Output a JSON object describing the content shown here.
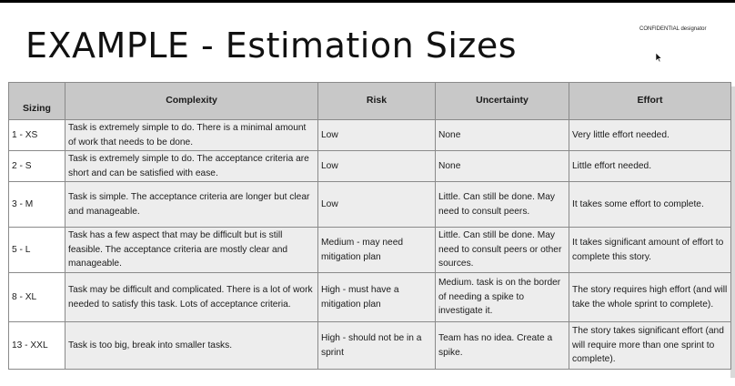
{
  "slide": {
    "title": "EXAMPLE - Estimation Sizes",
    "confidential_label": "CONFIDENTIAL designator"
  },
  "table": {
    "headers": [
      "Sizing",
      "Complexity",
      "Risk",
      "Uncertainty",
      "Effort"
    ],
    "rows": [
      {
        "sizing": "1 - XS",
        "complexity": "Task is extremely simple to do. There is a minimal amount of work that needs to be done.",
        "risk": "Low",
        "uncertainty": "None",
        "effort": "Very little effort needed."
      },
      {
        "sizing": "2 - S",
        "complexity": "Task is extremely simple to do. The acceptance criteria are short and can be satisfied with ease.",
        "risk": "Low",
        "uncertainty": "None",
        "effort": "Little effort needed."
      },
      {
        "sizing": "3 - M",
        "complexity": "Task is simple. The acceptance criteria are longer but clear and manageable.",
        "risk": "Low",
        "uncertainty": "Little. Can still be done. May need to consult peers.",
        "effort": "It takes some effort to complete."
      },
      {
        "sizing": "5 - L",
        "complexity": "Task has a few aspect that may be difficult but is still feasible. The acceptance criteria are mostly clear and manageable.",
        "risk": "Medium - may need mitigation plan",
        "uncertainty": "Little. Can still be done. May need to consult peers or other sources.",
        "effort": "It takes significant amount of effort to complete this story."
      },
      {
        "sizing": "8 - XL",
        "complexity": "Task may be difficult and complicated. There is a lot of work needed to satisfy this task. Lots of acceptance criteria.",
        "risk": "High - must have a mitigation plan",
        "uncertainty": "Medium. task is on the border of needing a spike to investigate it.",
        "effort": "The story requires high effort (and will take the whole sprint to complete)."
      },
      {
        "sizing": "13 - XXL",
        "complexity": "Task is too big, break into smaller tasks.",
        "risk": "High - should not be in a sprint",
        "uncertainty": "Team has no idea. Create a spike.",
        "effort": "The story takes significant effort (and will require more than one sprint to complete)."
      }
    ]
  }
}
